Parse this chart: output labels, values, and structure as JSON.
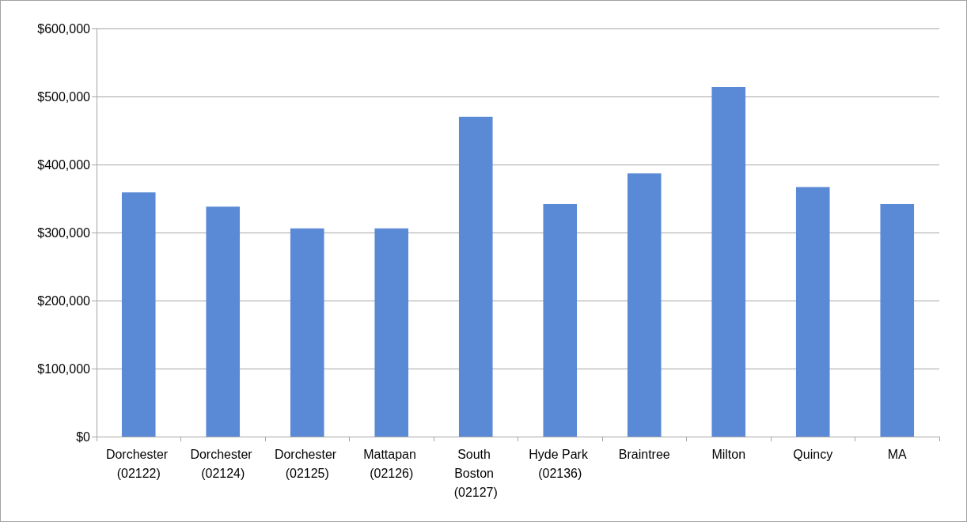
{
  "chart_data": {
    "type": "bar",
    "categories": [
      "Dorchester (02122)",
      "Dorchester (02124)",
      "Dorchester (02125)",
      "Mattapan (02126)",
      "South Boston (02127)",
      "Hyde Park (02136)",
      "Braintree",
      "Milton",
      "Quincy",
      "MA"
    ],
    "values": [
      359000,
      338000,
      306000,
      306000,
      470000,
      342000,
      387000,
      514000,
      367000,
      342000
    ],
    "color": "#5a8ad6",
    "ylim": [
      0,
      600000
    ],
    "yticks": [
      {
        "value": 0,
        "label": "$0"
      },
      {
        "value": 100000,
        "label": "$100,000"
      },
      {
        "value": 200000,
        "label": "$200,000"
      },
      {
        "value": 300000,
        "label": "$300,000"
      },
      {
        "value": 400000,
        "label": "$400,000"
      },
      {
        "value": 500000,
        "label": "$500,000"
      },
      {
        "value": 600000,
        "label": "$600,000"
      }
    ],
    "grid": "y"
  }
}
